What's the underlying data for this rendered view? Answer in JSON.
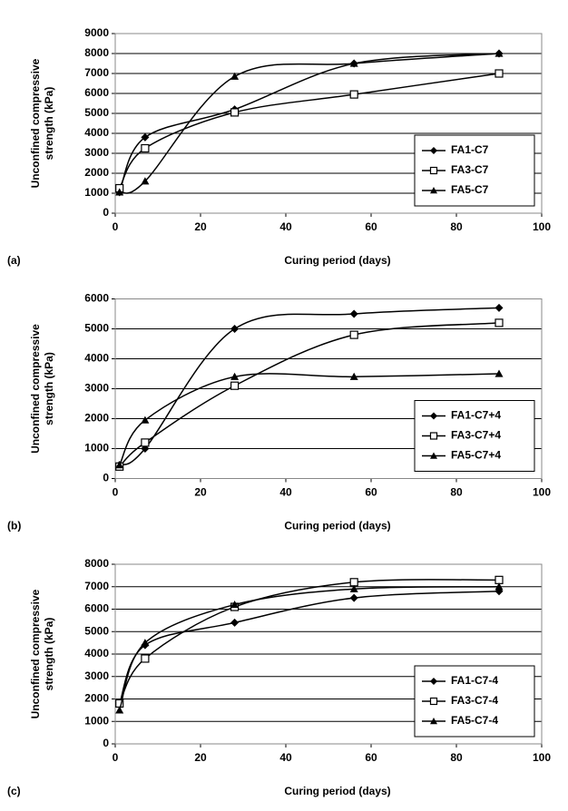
{
  "chart_data": [
    {
      "type": "line",
      "panel_label": "(a)",
      "xlabel": "Curing period (days)",
      "ylabel": [
        "Unconfined compressive",
        "strength (kPa)"
      ],
      "x": [
        1,
        7,
        28,
        56,
        90
      ],
      "xlim": [
        0,
        100
      ],
      "xticks": [
        0,
        20,
        40,
        60,
        80,
        100
      ],
      "ylim": [
        0,
        9000
      ],
      "yticks": [
        0,
        1000,
        2000,
        3000,
        4000,
        5000,
        6000,
        7000,
        8000,
        9000
      ],
      "grid": true,
      "legend": "lower right",
      "series": [
        {
          "name": "FA1-C7",
          "color": "#000000",
          "marker": "diamond",
          "values": [
            1050,
            3800,
            5200,
            7500,
            8000
          ]
        },
        {
          "name": "FA3-C7",
          "color": "#000000",
          "marker": "square",
          "values": [
            1250,
            3250,
            5050,
            5950,
            7000
          ]
        },
        {
          "name": "FA5-C7",
          "color": "#000000",
          "marker": "triangle",
          "values": [
            1050,
            1600,
            6850,
            7500,
            8000
          ]
        }
      ]
    },
    {
      "type": "line",
      "panel_label": "(b)",
      "xlabel": "Curing period (days)",
      "ylabel": [
        "Unconfined compressive",
        "strength (kPa)"
      ],
      "x": [
        1,
        7,
        28,
        56,
        90
      ],
      "xlim": [
        0,
        100
      ],
      "xticks": [
        0,
        20,
        40,
        60,
        80,
        100
      ],
      "ylim": [
        0,
        6000
      ],
      "yticks": [
        0,
        1000,
        2000,
        3000,
        4000,
        5000,
        6000
      ],
      "grid": true,
      "legend": "lower right",
      "series": [
        {
          "name": "FA1-C7+4",
          "color": "#000000",
          "marker": "diamond",
          "values": [
            450,
            1000,
            5000,
            5500,
            5700
          ]
        },
        {
          "name": "FA3-C7+4",
          "color": "#000000",
          "marker": "square",
          "values": [
            400,
            1200,
            3100,
            4800,
            5200
          ]
        },
        {
          "name": "FA5-C7+4",
          "color": "#000000",
          "marker": "triangle",
          "values": [
            450,
            1950,
            3400,
            3400,
            3500
          ]
        }
      ]
    },
    {
      "type": "line",
      "panel_label": "(c)",
      "xlabel": "Curing period (days)",
      "ylabel": [
        "Unconfined compressive",
        "strength (kPa)"
      ],
      "x": [
        1,
        7,
        28,
        56,
        90
      ],
      "xlim": [
        0,
        100
      ],
      "xticks": [
        0,
        20,
        40,
        60,
        80,
        100
      ],
      "ylim": [
        0,
        8000
      ],
      "yticks": [
        0,
        1000,
        2000,
        3000,
        4000,
        5000,
        6000,
        7000,
        8000
      ],
      "grid": true,
      "legend": "lower right",
      "series": [
        {
          "name": "FA1-C7-4",
          "color": "#000000",
          "marker": "diamond",
          "values": [
            1800,
            4400,
            5400,
            6500,
            6800
          ]
        },
        {
          "name": "FA3-C7-4",
          "color": "#000000",
          "marker": "square",
          "values": [
            1800,
            3800,
            6100,
            7200,
            7300
          ]
        },
        {
          "name": "FA5-C7-4",
          "color": "#000000",
          "marker": "triangle",
          "values": [
            1500,
            4500,
            6200,
            6900,
            7000
          ]
        }
      ]
    }
  ]
}
